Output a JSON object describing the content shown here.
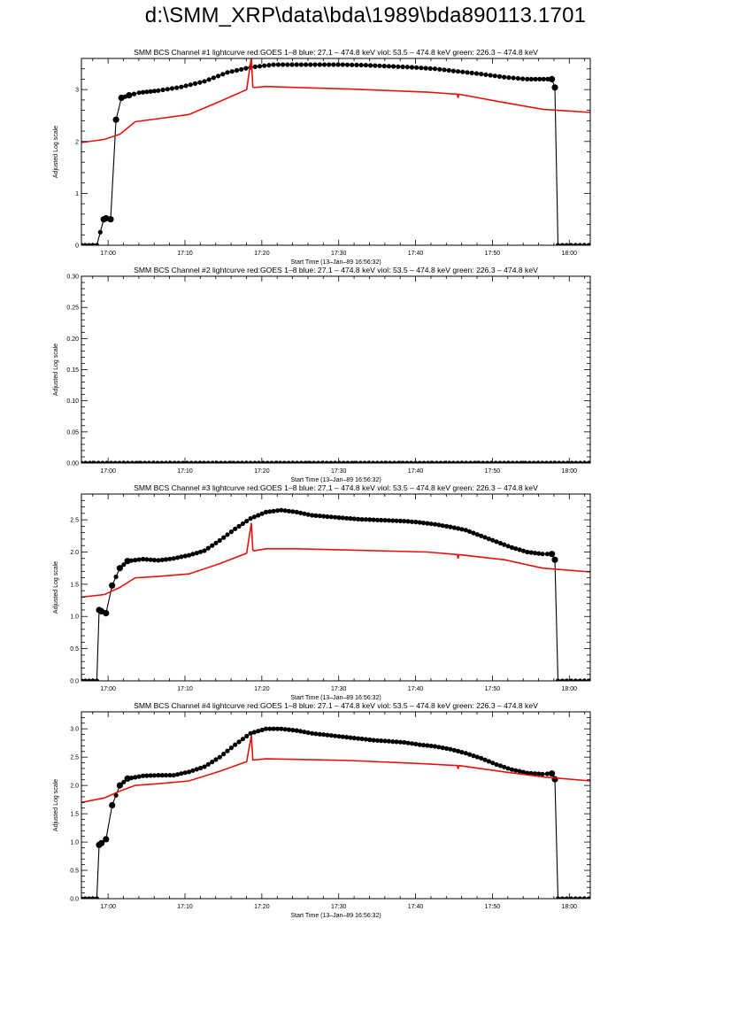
{
  "page": {
    "title": "d:\\SMM_XRP\\data\\bda\\1989\\bda890113.1701"
  },
  "colors": {
    "bcs_curve": "#000000",
    "goes_curve": "#e8120c",
    "axes": "#000000",
    "background": "#ffffff"
  },
  "chart_data": [
    {
      "type": "scatter",
      "title": "SMM BCS Channel #1 lightcurve  red:GOES 1–8  blue: 27.1 – 474.8 keV  viol: 53.5 – 474.8 keV  green: 226.3 – 474.8 keV",
      "xlabel": "Start Time (13–Jan–89 16:56:32)",
      "ylabel": "Adjusted Log scale",
      "x_unit": "minutes after 16:56:32 (axis labelled as clock time)",
      "xlim": [
        0,
        66.2
      ],
      "ylim": [
        0,
        3.6
      ],
      "x_ticks": [
        3.47,
        13.47,
        23.47,
        33.47,
        43.47,
        53.47,
        63.47
      ],
      "x_tick_labels": [
        "17:00",
        "17:10",
        "17:20",
        "17:30",
        "17:40",
        "17:50",
        "18:00"
      ],
      "y_ticks": [
        0,
        1,
        2,
        3
      ],
      "y_tick_labels": [
        "0",
        "1",
        "2",
        "3"
      ],
      "series": [
        {
          "x": [
            0,
            2,
            2.9,
            3.2,
            3.8,
            4.5,
            5.2,
            6.2,
            7.5,
            10,
            13,
            16,
            19,
            22,
            25,
            28,
            31,
            34,
            37,
            40,
            43,
            46,
            49,
            52,
            55,
            58,
            61.2,
            61.6,
            62,
            66
          ],
          "y": [
            0,
            0,
            0.5,
            0.52,
            0.5,
            2.42,
            2.84,
            2.89,
            2.94,
            2.98,
            3.05,
            3.16,
            3.33,
            3.43,
            3.48,
            3.48,
            3.48,
            3.48,
            3.47,
            3.45,
            3.43,
            3.4,
            3.35,
            3.3,
            3.24,
            3.2,
            3.2,
            3.04,
            0,
            0
          ]
        },
        {
          "x": [
            0,
            3,
            5,
            7,
            10,
            14,
            18,
            21.5,
            22.1,
            22.3,
            22.5,
            24,
            28,
            35,
            45,
            48.9,
            49,
            49.1,
            55,
            60,
            66.2
          ],
          "y": [
            1.98,
            2.04,
            2.14,
            2.38,
            2.44,
            2.52,
            2.77,
            3.0,
            3.62,
            3.05,
            3.04,
            3.06,
            3.04,
            3.01,
            2.95,
            2.91,
            2.84,
            2.91,
            2.75,
            2.62,
            2.56
          ]
        }
      ]
    },
    {
      "type": "scatter",
      "title": "SMM BCS Channel #2 lightcurve  red:GOES 1–8  blue: 27.1 – 474.8 keV  viol: 53.5 – 474.8 keV  green: 226.3 – 474.8 keV",
      "xlabel": "Start Time (13–Jan–89 16:56:32)",
      "ylabel": "Adjusted Log scale",
      "x_unit": "minutes after 16:56:32 (axis labelled as clock time)",
      "xlim": [
        0,
        66.2
      ],
      "ylim": [
        0,
        0.3
      ],
      "x_ticks": [
        3.47,
        13.47,
        23.47,
        33.47,
        43.47,
        53.47,
        63.47
      ],
      "x_tick_labels": [
        "17:00",
        "17:10",
        "17:20",
        "17:30",
        "17:40",
        "17:50",
        "18:00"
      ],
      "y_ticks": [
        0,
        0.05,
        0.1,
        0.15,
        0.2,
        0.25,
        0.3
      ],
      "y_tick_labels": [
        "0.00",
        "0.05",
        "0.10",
        "0.15",
        "0.20",
        "0.25",
        "0.30"
      ],
      "series": [
        {
          "x": [
            0,
            66
          ],
          "y": [
            0,
            0
          ]
        }
      ]
    },
    {
      "type": "scatter",
      "title": "SMM BCS Channel #3 lightcurve  red:GOES 1–8  blue: 27.1 – 474.8 keV  viol: 53.5 – 474.8 keV  green: 226.3 – 474.8 keV",
      "xlabel": "Start Time (13–Jan–89 16:56:32)",
      "ylabel": "Adjusted Log scale",
      "x_unit": "minutes after 16:56:32 (axis labelled as clock time)",
      "xlim": [
        0,
        66.2
      ],
      "ylim": [
        0,
        2.9
      ],
      "x_ticks": [
        3.47,
        13.47,
        23.47,
        33.47,
        43.47,
        53.47,
        63.47
      ],
      "x_tick_labels": [
        "17:00",
        "17:10",
        "17:20",
        "17:30",
        "17:40",
        "17:50",
        "18:00"
      ],
      "y_ticks": [
        0,
        0.5,
        1,
        1.5,
        2,
        2.5
      ],
      "y_tick_labels": [
        "0.0",
        "0.5",
        "1.0",
        "1.5",
        "2.0",
        "2.5"
      ],
      "series": [
        {
          "x": [
            0,
            2,
            2.3,
            2.6,
            3.2,
            4,
            5,
            6,
            8,
            10,
            12,
            14,
            16,
            18,
            20,
            22,
            24,
            26,
            28,
            30,
            32,
            34,
            36,
            38,
            40,
            42,
            44,
            46,
            48,
            50,
            52,
            54,
            56,
            58,
            60,
            61.2,
            61.6,
            62,
            66
          ],
          "y": [
            0,
            0,
            1.1,
            1.08,
            1.05,
            1.48,
            1.75,
            1.86,
            1.89,
            1.87,
            1.9,
            1.95,
            2.02,
            2.18,
            2.36,
            2.52,
            2.62,
            2.65,
            2.62,
            2.57,
            2.55,
            2.53,
            2.51,
            2.5,
            2.49,
            2.48,
            2.46,
            2.43,
            2.39,
            2.34,
            2.25,
            2.16,
            2.07,
            2.0,
            1.97,
            1.97,
            1.88,
            0,
            0
          ]
        },
        {
          "x": [
            0,
            3,
            5,
            7,
            10,
            14,
            18,
            21.5,
            22.1,
            22.3,
            22.5,
            24,
            28,
            35,
            45,
            48.9,
            49,
            49.1,
            55,
            60,
            66.2
          ],
          "y": [
            1.3,
            1.34,
            1.45,
            1.6,
            1.62,
            1.66,
            1.82,
            1.98,
            2.45,
            2.03,
            2.02,
            2.05,
            2.05,
            2.03,
            2.0,
            1.96,
            1.9,
            1.96,
            1.88,
            1.75,
            1.69
          ]
        }
      ]
    },
    {
      "type": "scatter",
      "title": "SMM BCS Channel #4 lightcurve  red:GOES 1–8  blue: 27.1 – 474.8 keV  viol: 53.5 – 474.8 keV  green: 226.3 – 474.8 keV",
      "xlabel": "Start Time (13–Jan–89 16:56:32)",
      "ylabel": "Adjusted Log scale",
      "x_unit": "minutes after 16:56:32 (axis labelled as clock time)",
      "xlim": [
        0,
        66.2
      ],
      "ylim": [
        0,
        3.3
      ],
      "x_ticks": [
        3.47,
        13.47,
        23.47,
        33.47,
        43.47,
        53.47,
        63.47
      ],
      "x_tick_labels": [
        "17:00",
        "17:10",
        "17:20",
        "17:30",
        "17:40",
        "17:50",
        "18:00"
      ],
      "y_ticks": [
        0,
        0.5,
        1,
        1.5,
        2,
        2.5,
        3
      ],
      "y_tick_labels": [
        "0.0",
        "0.5",
        "1.0",
        "1.5",
        "2.0",
        "2.5",
        "3.0"
      ],
      "series": [
        {
          "x": [
            0,
            2,
            2.3,
            2.6,
            3.2,
            4,
            5,
            6,
            8,
            10,
            12,
            14,
            16,
            18,
            20,
            22,
            24,
            26,
            28,
            30,
            32,
            34,
            36,
            38,
            40,
            42,
            44,
            46,
            48,
            50,
            52,
            54,
            56,
            58,
            60,
            61.2,
            61.6,
            62,
            66
          ],
          "y": [
            0,
            0,
            0.95,
            0.98,
            1.05,
            1.65,
            2.0,
            2.12,
            2.17,
            2.18,
            2.18,
            2.24,
            2.33,
            2.5,
            2.72,
            2.92,
            3.0,
            3.0,
            2.97,
            2.92,
            2.89,
            2.86,
            2.83,
            2.8,
            2.78,
            2.76,
            2.72,
            2.69,
            2.64,
            2.57,
            2.48,
            2.37,
            2.28,
            2.22,
            2.2,
            2.21,
            2.11,
            0,
            0
          ]
        },
        {
          "x": [
            0,
            3,
            5,
            7,
            10,
            14,
            18,
            21.5,
            22.1,
            22.3,
            22.5,
            24,
            28,
            35,
            45,
            48.9,
            49,
            49.1,
            55,
            60,
            66.2
          ],
          "y": [
            1.7,
            1.78,
            1.9,
            2.0,
            2.03,
            2.08,
            2.25,
            2.42,
            2.88,
            2.45,
            2.45,
            2.47,
            2.46,
            2.44,
            2.38,
            2.35,
            2.29,
            2.35,
            2.24,
            2.15,
            2.08
          ]
        }
      ]
    }
  ]
}
